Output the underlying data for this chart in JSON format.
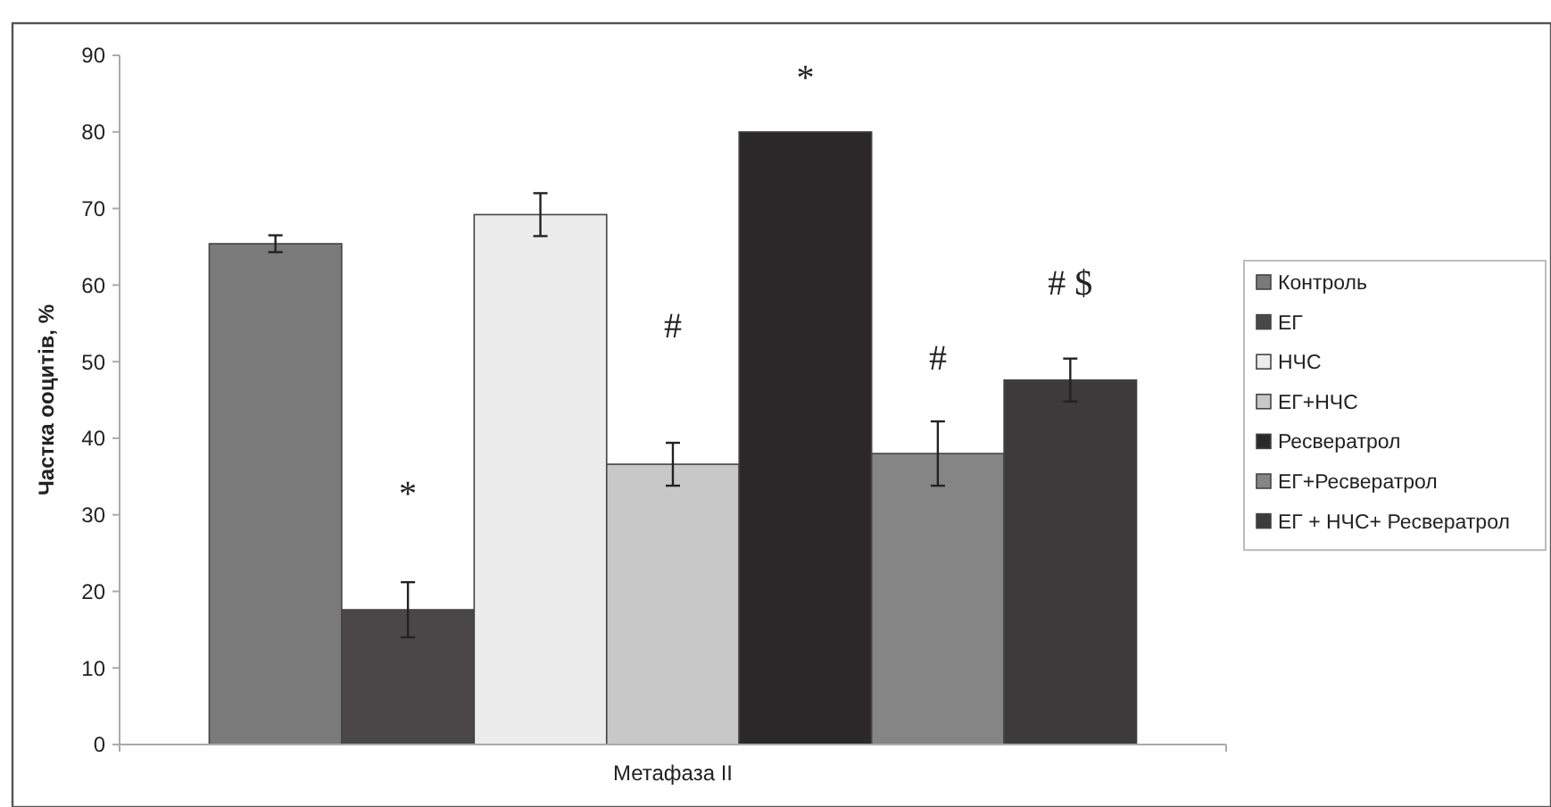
{
  "chart_data": {
    "type": "bar",
    "ylabel": "Частка ооцитів, %",
    "categories": [
      "Метафаза II"
    ],
    "series": [
      {
        "name": "Контроль",
        "color": "#7a7a7a",
        "values": [
          65.4
        ],
        "errors": [
          1.1
        ]
      },
      {
        "name": "ЕГ",
        "color": "#4a4748",
        "values": [
          17.6
        ],
        "errors": [
          3.6
        ]
      },
      {
        "name": "НЧС",
        "color": "#ececec",
        "values": [
          69.2
        ],
        "errors": [
          2.8
        ]
      },
      {
        "name": "ЕГ+НЧС",
        "color": "#c8c8c8",
        "values": [
          36.6
        ],
        "errors": [
          2.8
        ]
      },
      {
        "name": "Ресвератрол",
        "color": "#2b2829",
        "values": [
          80
        ],
        "errors": [
          null
        ]
      },
      {
        "name": "ЕГ+Ресвератрол",
        "color": "#858585",
        "values": [
          38
        ],
        "errors": [
          4.2
        ]
      },
      {
        "name": "ЕГ + НЧС+ Ресвератрол",
        "color": "#3d3a3b",
        "values": [
          47.6
        ],
        "errors": [
          2.8
        ]
      }
    ],
    "annotations": [
      "*",
      "#",
      "*",
      "#",
      "# $"
    ],
    "ylim": [
      0,
      90
    ],
    "yticks": [
      0,
      10,
      20,
      30,
      40,
      50,
      60,
      70,
      80,
      90
    ],
    "grid": false,
    "legend": "right"
  }
}
